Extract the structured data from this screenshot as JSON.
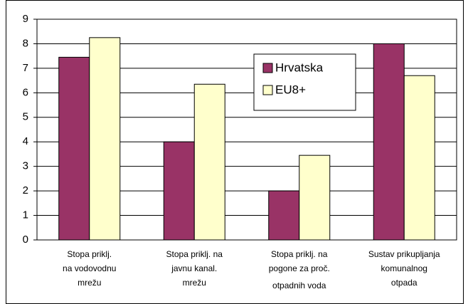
{
  "chart_data": {
    "type": "bar",
    "categories": [
      [
        "Stopa priklj.",
        "na vodovodnu",
        "mrežu"
      ],
      [
        "Stopa priklj. na",
        "javnu kanal.",
        "mrežu"
      ],
      [
        "Stopa priklj. na",
        "pogone za proč.",
        "otpadnih voda"
      ],
      [
        "Sustav prikupljanja",
        "komunalnog",
        "otpada"
      ]
    ],
    "series": [
      {
        "name": "Hrvatska",
        "color": "#993366",
        "values": [
          7.45,
          4,
          2,
          8
        ]
      },
      {
        "name": "EU8+",
        "color": "#ffffcc",
        "values": [
          8.25,
          6.35,
          3.45,
          6.7
        ]
      }
    ],
    "ylim": [
      0,
      9
    ],
    "yticks": [
      0,
      1,
      2,
      3,
      4,
      5,
      6,
      7,
      8,
      9
    ],
    "grid": true,
    "legend": "top-right"
  }
}
